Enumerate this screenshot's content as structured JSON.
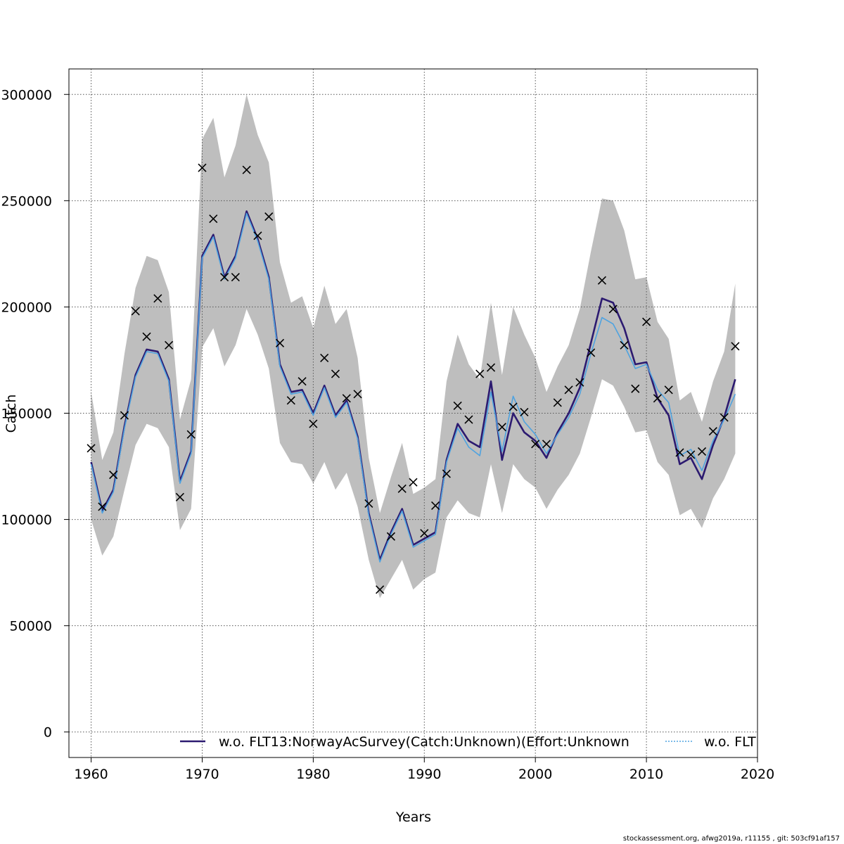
{
  "chart_data": {
    "type": "line",
    "title": "",
    "xlabel": "Years",
    "ylabel": "Catch",
    "xlim": [
      1958,
      2020
    ],
    "ylim": [
      -12000,
      312000
    ],
    "x_ticks": [
      1960,
      1970,
      1980,
      1990,
      2000,
      2010,
      2020
    ],
    "y_ticks": [
      0,
      50000,
      100000,
      150000,
      200000,
      250000,
      300000
    ],
    "grid": true,
    "legend_placement": "bottom",
    "years": [
      1960,
      1961,
      1962,
      1963,
      1964,
      1965,
      1966,
      1967,
      1968,
      1969,
      1970,
      1971,
      1972,
      1973,
      1974,
      1975,
      1976,
      1977,
      1978,
      1979,
      1980,
      1981,
      1982,
      1983,
      1984,
      1985,
      1986,
      1987,
      1988,
      1989,
      1990,
      1991,
      1992,
      1993,
      1994,
      1995,
      1996,
      1997,
      1998,
      1999,
      2000,
      2001,
      2002,
      2003,
      2004,
      2005,
      2006,
      2007,
      2008,
      2009,
      2010,
      2011,
      2012,
      2013,
      2014,
      2015,
      2016,
      2017,
      2018
    ],
    "band_upper": [
      160000,
      128000,
      141000,
      178000,
      209000,
      224000,
      222000,
      207000,
      147000,
      166000,
      279000,
      289000,
      261000,
      276000,
      300000,
      281000,
      268000,
      221000,
      202000,
      205000,
      190000,
      210000,
      192000,
      199000,
      176000,
      129000,
      103000,
      120000,
      136000,
      112000,
      115000,
      119000,
      165000,
      187000,
      173000,
      166000,
      202000,
      168000,
      200000,
      187000,
      176000,
      160000,
      172000,
      182000,
      199000,
      226000,
      251000,
      250000,
      236000,
      213000,
      214000,
      193000,
      185000,
      156000,
      160000,
      146000,
      165000,
      179000,
      211000
    ],
    "band_lower": [
      100000,
      83000,
      92000,
      114000,
      135000,
      145000,
      143000,
      134000,
      95000,
      105000,
      181000,
      190000,
      172000,
      182000,
      199000,
      187000,
      171000,
      136000,
      127000,
      126000,
      117000,
      127000,
      114000,
      122000,
      106000,
      81000,
      63000,
      72000,
      81000,
      67000,
      72000,
      75000,
      101000,
      109000,
      103000,
      101000,
      126000,
      103000,
      126000,
      119000,
      115000,
      105000,
      114000,
      121000,
      131000,
      148000,
      166000,
      163000,
      153000,
      141000,
      142000,
      127000,
      121000,
      102000,
      105000,
      96000,
      110000,
      119000,
      131000
    ],
    "series": [
      {
        "name": "w.o. FLT13:NorwayAcSurvey(Catch:Unknown)(Effort:Unknown",
        "color": "#2c1a70",
        "values": [
          127000,
          104000,
          114000,
          144000,
          168000,
          180000,
          179000,
          166000,
          118000,
          132000,
          224000,
          234000,
          214000,
          224000,
          245000,
          232000,
          214000,
          173000,
          160000,
          161000,
          150000,
          163000,
          149000,
          156000,
          139000,
          103000,
          81000,
          94000,
          105000,
          88000,
          91000,
          94000,
          128000,
          145000,
          137000,
          134000,
          165000,
          128000,
          150000,
          141000,
          137000,
          129000,
          141000,
          150000,
          162000,
          183000,
          204000,
          202000,
          190000,
          173000,
          174000,
          157000,
          149000,
          126000,
          129000,
          119000,
          135000,
          148000,
          166000
        ]
      },
      {
        "name": "w.o. FLT",
        "color": "#4fa3e0",
        "values": [
          126000,
          103000,
          113000,
          143000,
          167000,
          179000,
          178000,
          165000,
          117000,
          131000,
          223000,
          233000,
          213000,
          223000,
          244000,
          231000,
          213000,
          172000,
          159000,
          160000,
          149000,
          162000,
          148000,
          155000,
          138000,
          102000,
          80000,
          93000,
          104000,
          87000,
          90000,
          93000,
          127000,
          143000,
          134000,
          130000,
          160000,
          132000,
          158000,
          146000,
          140000,
          131000,
          140000,
          148000,
          159000,
          178000,
          195000,
          192000,
          182000,
          171000,
          173000,
          161000,
          155000,
          130000,
          133000,
          123000,
          137000,
          147000,
          159000
        ]
      }
    ],
    "observed": {
      "marker": "x",
      "values": [
        133500,
        106000,
        121000,
        149000,
        198000,
        186000,
        204000,
        182000,
        110500,
        140000,
        265500,
        241500,
        214000,
        214000,
        264500,
        233500,
        242500,
        183000,
        156000,
        165000,
        145000,
        176000,
        168500,
        157000,
        159000,
        107500,
        67000,
        92000,
        114500,
        117500,
        93500,
        106500,
        121500,
        153500,
        147000,
        168500,
        171500,
        143500,
        153000,
        150500,
        135500,
        135500,
        155000,
        161000,
        164500,
        178500,
        212500,
        199000,
        182000,
        161500,
        193000,
        157000,
        161000,
        131500,
        130500,
        132000,
        141500,
        148000,
        181500
      ]
    }
  },
  "footer": "stockassessment.org, afwg2019a, r11155 , git: 503cf91af157"
}
